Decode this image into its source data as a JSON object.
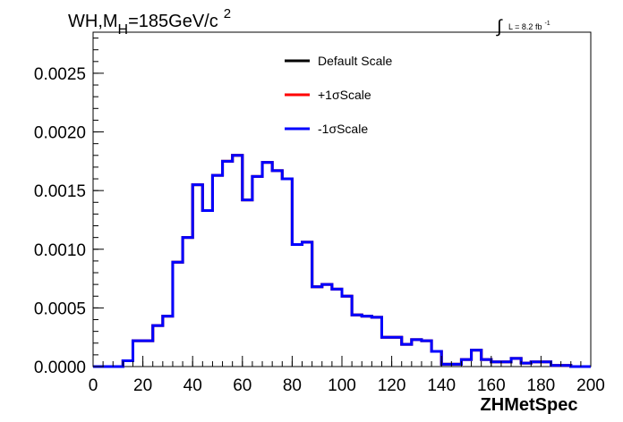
{
  "chart_data": {
    "type": "line",
    "title": {
      "main": "WH,M",
      "subscript": "H",
      "rest": "=185GeV/c",
      "superscript": "2"
    },
    "luminosity": {
      "text": "L = 8.2 fb",
      "superscript": "-1"
    },
    "xlabel": "ZHMetSpec",
    "ylabel": "",
    "xlim": [
      0,
      200
    ],
    "ylim": [
      0,
      0.00285
    ],
    "x_ticks": [
      0,
      20,
      40,
      60,
      80,
      100,
      120,
      140,
      160,
      180,
      200
    ],
    "x_tick_labels": [
      "0",
      "20",
      "40",
      "60",
      "80",
      "100",
      "120",
      "140",
      "160",
      "180",
      "200"
    ],
    "y_ticks": [
      0,
      0.0005,
      0.001,
      0.0015,
      0.002,
      0.0025
    ],
    "y_tick_labels": [
      "0.0000",
      "0.0005",
      "0.0010",
      "0.0015",
      "0.0020",
      "0.0025"
    ],
    "grid": false,
    "legend_position": "top-center",
    "bin_edges": [
      0,
      4,
      8,
      12,
      16,
      20,
      24,
      28,
      32,
      36,
      40,
      44,
      48,
      52,
      56,
      60,
      64,
      68,
      72,
      76,
      80,
      84,
      88,
      92,
      96,
      100,
      104,
      108,
      112,
      116,
      120,
      124,
      128,
      132,
      136,
      140,
      144,
      148,
      152,
      156,
      160,
      164,
      168,
      172,
      176,
      180,
      184,
      188,
      192,
      196,
      200
    ],
    "series": [
      {
        "name": "Default Scale",
        "color": "#000000",
        "values": [
          0,
          0,
          0,
          5e-05,
          0.00022,
          0.00022,
          0.00035,
          0.00043,
          0.00089,
          0.0011,
          0.00155,
          0.00133,
          0.00163,
          0.00175,
          0.0018,
          0.00142,
          0.00162,
          0.00174,
          0.00167,
          0.0016,
          0.00104,
          0.00106,
          0.00068,
          0.0007,
          0.00066,
          0.0006,
          0.00044,
          0.00043,
          0.00042,
          0.00025,
          0.00025,
          0.00019,
          0.00023,
          0.00022,
          0.00013,
          2e-05,
          2e-05,
          6e-05,
          0.00014,
          6e-05,
          4e-05,
          4e-05,
          7e-05,
          3e-05,
          4e-05,
          4e-05,
          1e-05,
          1e-05,
          0,
          0
        ]
      },
      {
        "name": "+1σScale",
        "color": "#ff0000",
        "values": [
          0,
          0,
          0,
          5e-05,
          0.00022,
          0.00022,
          0.00035,
          0.00043,
          0.00089,
          0.0011,
          0.00155,
          0.00133,
          0.00163,
          0.00175,
          0.0018,
          0.00142,
          0.00162,
          0.00174,
          0.00167,
          0.0016,
          0.00104,
          0.00106,
          0.00068,
          0.0007,
          0.00066,
          0.0006,
          0.00044,
          0.00043,
          0.00042,
          0.00025,
          0.00025,
          0.00019,
          0.00023,
          0.00022,
          0.00013,
          2e-05,
          2e-05,
          6e-05,
          0.00014,
          6e-05,
          4e-05,
          4e-05,
          7e-05,
          3e-05,
          4e-05,
          4e-05,
          1e-05,
          1e-05,
          0,
          0
        ]
      },
      {
        "name": "-1σScale",
        "color": "#0000ff",
        "values": [
          0,
          0,
          0,
          5e-05,
          0.00022,
          0.00022,
          0.00035,
          0.00043,
          0.00089,
          0.0011,
          0.00155,
          0.00133,
          0.00163,
          0.00175,
          0.0018,
          0.00142,
          0.00162,
          0.00174,
          0.00167,
          0.0016,
          0.00104,
          0.00106,
          0.00068,
          0.0007,
          0.00066,
          0.0006,
          0.00044,
          0.00043,
          0.00042,
          0.00025,
          0.00025,
          0.00019,
          0.00023,
          0.00022,
          0.00013,
          2e-05,
          2e-05,
          6e-05,
          0.00014,
          6e-05,
          4e-05,
          4e-05,
          7e-05,
          3e-05,
          4e-05,
          4e-05,
          1e-05,
          1e-05,
          0,
          0
        ]
      }
    ]
  }
}
